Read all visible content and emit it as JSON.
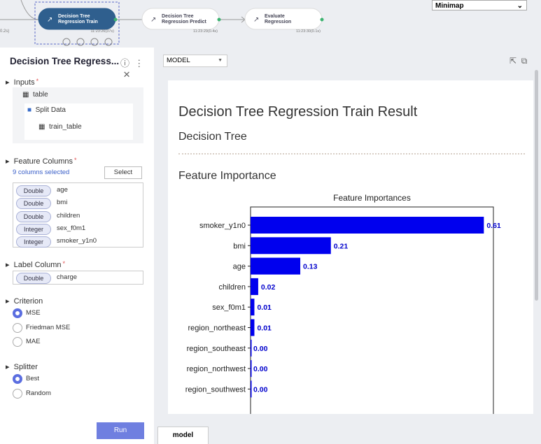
{
  "workflow": {
    "partial_time": "0.2s)",
    "nodes": [
      {
        "line1": "Decision Tree",
        "line2": "Regression Train",
        "time": "11:23:26(37s)",
        "selected": true
      },
      {
        "line1": "Decision Tree",
        "line2": "Regression Predict",
        "time": "11:23:29(0.4s)",
        "selected": false
      },
      {
        "line1": "Evaluate",
        "line2": "Regression",
        "time": "11:23:30(0.1s)",
        "selected": false
      }
    ],
    "minimap": "Minimap"
  },
  "panel": {
    "title": "Decision Tree Regress...",
    "inputs": {
      "label": "Inputs",
      "required": "*",
      "table": "table",
      "split": "Split Data",
      "train": "train_table"
    },
    "feature_columns": {
      "label": "Feature Columns",
      "required": "*",
      "summary": "9 columns selected",
      "button": "Select",
      "columns": [
        {
          "type": "Double",
          "name": "age"
        },
        {
          "type": "Double",
          "name": "bmi"
        },
        {
          "type": "Double",
          "name": "children"
        },
        {
          "type": "Integer",
          "name": "sex_f0m1"
        },
        {
          "type": "Integer",
          "name": "smoker_y1n0"
        }
      ]
    },
    "label_column": {
      "label": "Label Column",
      "required": "*",
      "type": "Double",
      "name": "charge"
    },
    "criterion": {
      "label": "Criterion",
      "options": [
        "MSE",
        "Friedman MSE",
        "MAE"
      ],
      "selected": 0
    },
    "splitter": {
      "label": "Splitter",
      "options": [
        "Best",
        "Random"
      ],
      "selected": 0
    },
    "run": "Run"
  },
  "model": {
    "dropdown": "MODEL",
    "title": "Decision Tree Regression Train Result",
    "tree": "Decision Tree",
    "importance": "Feature Importance",
    "tab": "model"
  },
  "chart_data": {
    "type": "barh",
    "title": "Feature Importances",
    "categories": [
      "smoker_y1n0",
      "bmi",
      "age",
      "children",
      "sex_f0m1",
      "region_northeast",
      "region_southeast",
      "region_northwest",
      "region_southwest"
    ],
    "values": [
      0.61,
      0.21,
      0.13,
      0.02,
      0.01,
      0.01,
      0.0,
      0.0,
      0.0
    ],
    "value_labels": [
      "0.61",
      "0.21",
      "0.13",
      "0.02",
      "0.01",
      "0.01",
      "0.00",
      "0.00",
      "0.00"
    ],
    "color": "#0000ee",
    "label_color": "#0000cc",
    "xlim": [
      0,
      0.635
    ]
  }
}
